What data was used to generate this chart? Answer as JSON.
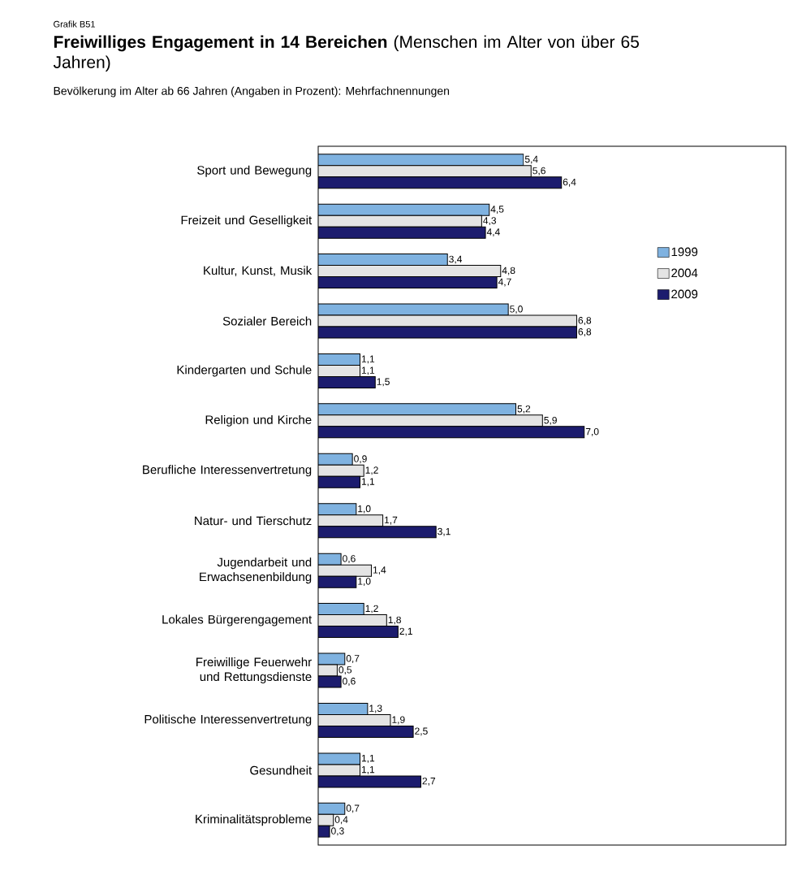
{
  "chart_data": {
    "type": "bar",
    "orientation": "horizontal",
    "title": "**Freiwilliges Engagement  in 14 Bereichen** (Menschen im Alter von über 65 Jahren)",
    "subtitle": "Bevölkerung im Alter ab 66 Jahren (Angaben in Prozent): Mehrfachnennungen",
    "annotations": [
      "Grafik B51"
    ],
    "categories": [
      "Sport und Bewegung",
      "Freizeit und Geselligkeit",
      "Kultur, Kunst, Musik",
      "Sozialer Bereich",
      "Kindergarten und Schule",
      "Religion und Kirche",
      "Berufliche Interessenvertretung",
      "Natur- und Tierschutz",
      "Jugendarbeit und Erwachsenenbildung",
      "Lokales Bürgerengagement",
      "Freiwillige Feuerwehr und Rettungsdienste",
      "Politische Interessenvertretung",
      "Gesundheit",
      "Kriminalitätsprobleme"
    ],
    "series": [
      {
        "name": "1999",
        "color": "#7fb2e0",
        "values": [
          5.4,
          4.5,
          3.4,
          5.0,
          1.1,
          5.2,
          0.9,
          1.0,
          0.6,
          1.2,
          0.7,
          1.3,
          1.1,
          0.7
        ],
        "value_labels": [
          "5,4",
          "4,5",
          "3,4",
          "5,0",
          "1,1",
          "5,2",
          "0,9",
          "1,0",
          "0,6",
          "1,2",
          "0,7",
          "1,3",
          "1,1",
          "0,7"
        ]
      },
      {
        "name": "2004",
        "color": "#e4e4e4",
        "values": [
          5.6,
          4.3,
          4.8,
          6.8,
          1.1,
          5.9,
          1.2,
          1.7,
          1.4,
          1.8,
          0.5,
          1.9,
          1.1,
          0.4
        ],
        "value_labels": [
          "5,6",
          "4,3",
          "4,8",
          "6,8",
          "1,1",
          "5,9",
          "1,2",
          "1,7",
          "1,4",
          "1,8",
          "0,5",
          "1,9",
          "1,1",
          "0,4"
        ]
      },
      {
        "name": "2009",
        "color": "#1c1c6e",
        "values": [
          6.4,
          4.4,
          4.7,
          6.8,
          1.5,
          7.0,
          1.1,
          3.1,
          1.0,
          2.1,
          0.6,
          2.5,
          2.7,
          0.3
        ],
        "value_labels": [
          "6,4",
          "4,4",
          "4,7",
          "6,8",
          "1,5",
          "7,0",
          "1,1",
          "3,1",
          "1,0",
          "2,1",
          "0,6",
          "2,5",
          "2,7",
          "0,3"
        ]
      }
    ],
    "xlim": [
      0,
      12.3
    ],
    "tick_labels": "y",
    "legend": "right"
  }
}
